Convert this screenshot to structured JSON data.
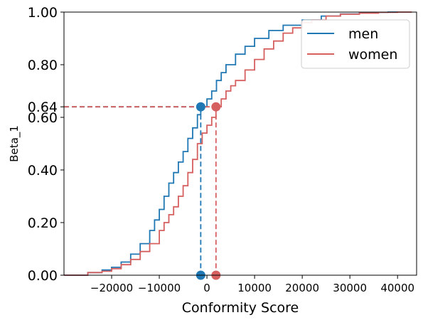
{
  "chart_data": {
    "type": "line",
    "title": "",
    "xlabel": "Conformity Score",
    "ylabel": "Beta_1",
    "xlim": [
      -30000,
      44000
    ],
    "ylim": [
      0,
      1
    ],
    "x_ticks": [
      -20000,
      -10000,
      0,
      10000,
      20000,
      30000,
      40000
    ],
    "x_tick_labels": [
      "−20000",
      "−10000",
      "0",
      "10000",
      "20000",
      "30000",
      "40000"
    ],
    "y_ticks": [
      0.0,
      0.2,
      0.4,
      0.6,
      0.64,
      0.8,
      1.0
    ],
    "y_tick_labels": [
      "0.00",
      "0.20",
      "0.40",
      "0.60",
      "0.64",
      "0.80",
      "1.00"
    ],
    "legend": {
      "position": "top-right"
    },
    "grid": false,
    "series": [
      {
        "name": "men",
        "color": "#1f77b4",
        "x": [
          -30000,
          -25000,
          -22000,
          -20000,
          -18000,
          -16000,
          -14000,
          -12000,
          -11000,
          -10000,
          -9000,
          -8000,
          -7000,
          -6000,
          -5000,
          -4000,
          -3000,
          -2000,
          -1300,
          0,
          1000,
          2000,
          3000,
          4000,
          6000,
          8000,
          10000,
          13000,
          16000,
          20000,
          24000,
          28000,
          32000,
          35000,
          38000,
          40000
        ],
        "y": [
          0.0,
          0.01,
          0.02,
          0.03,
          0.05,
          0.08,
          0.12,
          0.17,
          0.21,
          0.25,
          0.3,
          0.35,
          0.39,
          0.43,
          0.47,
          0.52,
          0.56,
          0.61,
          0.64,
          0.67,
          0.7,
          0.74,
          0.77,
          0.8,
          0.84,
          0.87,
          0.9,
          0.93,
          0.95,
          0.97,
          0.985,
          0.993,
          0.997,
          0.999,
          1.0,
          1.0
        ]
      },
      {
        "name": "women",
        "color": "#d65f5f",
        "x": [
          -30000,
          -25000,
          -22000,
          -20000,
          -18000,
          -16000,
          -14000,
          -12000,
          -10000,
          -9000,
          -8000,
          -7000,
          -6000,
          -5000,
          -4000,
          -3000,
          -2000,
          -1000,
          0,
          1000,
          1900,
          3000,
          4000,
          5000,
          6000,
          8000,
          10000,
          12000,
          14000,
          16000,
          18000,
          20000,
          22000,
          25000,
          28000,
          32000,
          36000,
          40000,
          43000
        ],
        "y": [
          0.0,
          0.01,
          0.015,
          0.025,
          0.04,
          0.06,
          0.09,
          0.12,
          0.17,
          0.2,
          0.23,
          0.26,
          0.3,
          0.34,
          0.39,
          0.44,
          0.5,
          0.54,
          0.57,
          0.6,
          0.64,
          0.67,
          0.7,
          0.72,
          0.74,
          0.78,
          0.82,
          0.86,
          0.89,
          0.92,
          0.94,
          0.96,
          0.97,
          0.985,
          0.992,
          0.996,
          0.999,
          1.0,
          1.0
        ]
      }
    ],
    "annotations": [
      {
        "series": "men",
        "x": -1300,
        "y": 0.64,
        "color": "#1f77b4"
      },
      {
        "series": "women",
        "x": 1900,
        "y": 0.64,
        "color": "#d65f5f"
      }
    ]
  }
}
